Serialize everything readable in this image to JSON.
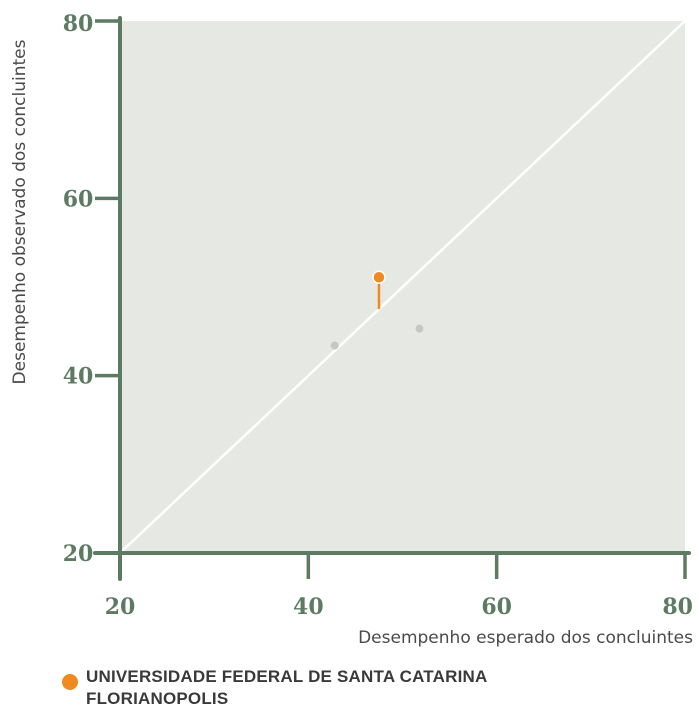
{
  "chart_data": {
    "type": "scatter",
    "xlabel": "Desempenho esperado dos concluintes",
    "ylabel": "Desempenho observado dos concluintes",
    "xlim": [
      20,
      80
    ],
    "ylim": [
      20,
      80
    ],
    "xticks": [
      "20",
      "40",
      "60",
      "80"
    ],
    "yticks": [
      "20",
      "40",
      "60",
      "80"
    ],
    "grid": false,
    "reference_line": {
      "from": [
        20,
        20
      ],
      "to": [
        80,
        80
      ]
    },
    "highlight": {
      "x": 47.5,
      "y": 51.1,
      "expected_y": 47.5,
      "color": "#ee8a1f"
    },
    "others": [
      {
        "x": 42.8,
        "y": 43.4
      },
      {
        "x": 51.8,
        "y": 45.3
      }
    ],
    "colors": {
      "panel": "#e6e8e4",
      "axis": "#5d7a63",
      "others": "#c4c8c3",
      "diagonal": "#ffffff"
    }
  },
  "legend": {
    "line1": "UNIVERSIDADE FEDERAL DE SANTA CATARINA",
    "line2": "FLORIANOPOLIS"
  }
}
